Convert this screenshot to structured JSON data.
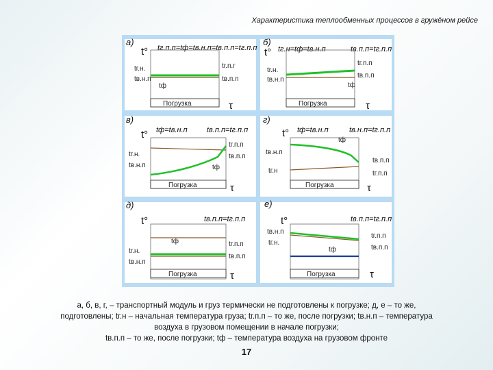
{
  "slide": {
    "title": "Характеристика теплообменных процессов в гружёном рейсе",
    "caption": [
      "а, б, в, г, – транспортный модуль и груз термически не подготовлены к погрузке; д, е – то же,",
      "подготовлены; tг.н – начальная температура груза; tг.п.п – то же, после погрузки; tв.н.п – температура",
      "воздуха в грузовом помещении в начале погрузки;",
      "tв.п.п – то же, после погрузки; tф – температура воздуха на грузовом фронте"
    ],
    "page_number": "17"
  },
  "common": {
    "t_axis": "t°",
    "tau_axis": "τ",
    "loading": "Погрузка"
  },
  "panels": {
    "a": {
      "letter": "а)",
      "header": "tг.п.п=tф=tв.н.п=tв.п.п=tг.п.п",
      "left_labels": [
        "tг.н.",
        "tв.н.п"
      ],
      "right_labels": [
        "tг.п.г",
        "tв.п.п"
      ],
      "inner_label": "tф"
    },
    "b": {
      "letter": "б)",
      "header_left": "tг.н=tф=tв.н.п",
      "header_right": "tв.п.п=tг.п.п",
      "left_labels": [
        "tг.н.",
        "tв.н.п"
      ],
      "right_labels": [
        "tг.п.п",
        "tв.п.п"
      ],
      "inner_label": "tф"
    },
    "v": {
      "letter": "в)",
      "header_left": "tф=tв.н.п",
      "header_right": "tв.п.п=tг.п.п",
      "left_labels": [
        "tг.н.",
        "tв.н.п"
      ],
      "right_labels": [
        "tг.п.п",
        "tв.п.п"
      ],
      "inner_label": "tф"
    },
    "g": {
      "letter": "г)",
      "header_left": "tф=tв.н.п",
      "header_right": "tв.н.п=tг.п.п",
      "left_labels": [
        "tв.н.п",
        "tг.н"
      ],
      "right_labels": [
        "tв.п.п",
        "tг.п.п"
      ],
      "inner_label": "tф"
    },
    "d": {
      "letter": "д)",
      "header_right": "tв.п.п=tг.п.п",
      "left_labels": [
        "tг.н.",
        "tв.н.п"
      ],
      "right_labels": [
        "tг.п.п",
        "tв.п.п"
      ],
      "inner_label": "tф"
    },
    "e": {
      "letter": "е)",
      "header_right": "tв.п.п=tг.п.п",
      "left_labels": [
        "tв.н.п",
        "tг.н."
      ],
      "right_labels": [
        "tг.п.п",
        "tв.п.п"
      ],
      "inner_label": "tф"
    }
  },
  "colors": {
    "board": "#b9dbf3",
    "green": "#22c02a",
    "brown": "#8a5a28",
    "blue": "#1a3c9c"
  }
}
